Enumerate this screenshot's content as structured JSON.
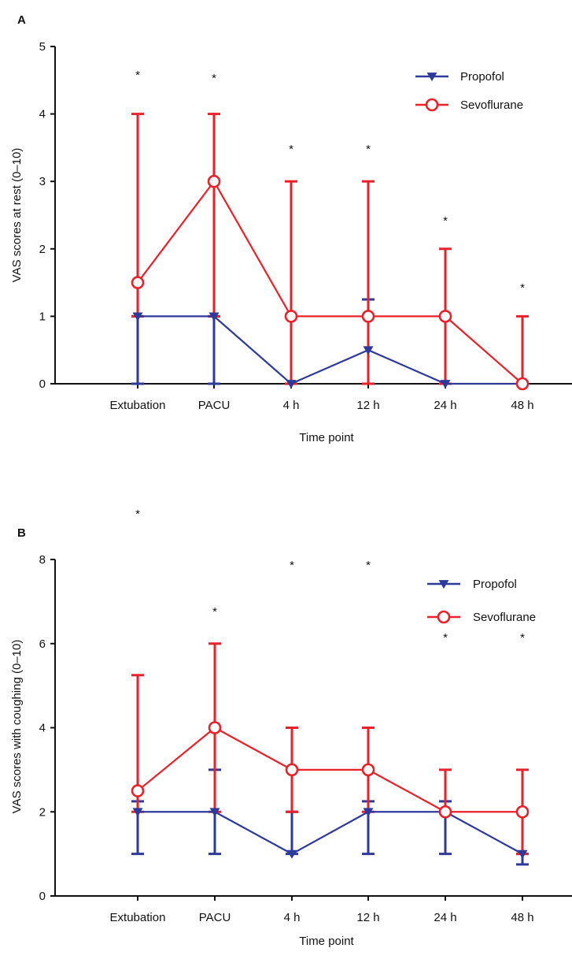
{
  "colors": {
    "propofol": "#2e3a9a",
    "sevoflurane": "#e8212a",
    "axis": "#111111"
  },
  "chart_data": [
    {
      "type": "line",
      "panel_label": "A",
      "xlabel": "Time point",
      "ylabel": "VAS scores at rest (0–10)",
      "categories": [
        "Extubation",
        "PACU",
        "4 h",
        "12 h",
        "24 h",
        "48 h"
      ],
      "ylim": [
        0,
        5
      ],
      "yticks": [
        0,
        1,
        2,
        3,
        4,
        5
      ],
      "ytick_labels": [
        "0",
        "1",
        "2",
        "3",
        "4",
        "5"
      ],
      "legend_position": "top-right",
      "significance": [
        "*",
        "*",
        "*",
        "*",
        "*",
        "*"
      ],
      "series": [
        {
          "name": "Propofol",
          "marker": "triangle-down",
          "color": "#2e3a9a",
          "values": [
            1,
            1,
            0,
            0.5,
            0,
            0
          ],
          "err_low": [
            0,
            0,
            0,
            0,
            0,
            0
          ],
          "err_high": [
            1,
            1,
            1,
            1.25,
            0,
            0
          ]
        },
        {
          "name": "Sevoflurane",
          "marker": "open-circle",
          "color": "#e8212a",
          "values": [
            1.5,
            3,
            1,
            1,
            1,
            0
          ],
          "err_low": [
            1,
            1,
            0,
            0,
            0,
            0
          ],
          "err_high": [
            4,
            4,
            3,
            3,
            2,
            1
          ]
        }
      ]
    },
    {
      "type": "line",
      "panel_label": "B",
      "xlabel": "Time point",
      "ylabel": "VAS scores with coughing (0–10)",
      "categories": [
        "Extubation",
        "PACU",
        "4 h",
        "12 h",
        "24 h",
        "48 h"
      ],
      "ylim": [
        0,
        8
      ],
      "yticks": [
        0,
        2,
        4,
        6,
        8
      ],
      "ytick_labels": [
        "0",
        "2",
        "4",
        "6",
        "8"
      ],
      "legend_position": "top-right",
      "significance": [
        "*",
        "*",
        "*",
        "*",
        "*",
        "*"
      ],
      "series": [
        {
          "name": "Propofol",
          "marker": "triangle-down",
          "color": "#2e3a9a",
          "values": [
            2,
            2,
            1,
            2,
            2,
            1
          ],
          "err_low": [
            1,
            1,
            1,
            1,
            1,
            0.75
          ],
          "err_high": [
            2.25,
            3,
            2,
            2.25,
            2.25,
            1
          ]
        },
        {
          "name": "Sevoflurane",
          "marker": "open-circle",
          "color": "#e8212a",
          "values": [
            2.5,
            4,
            3,
            3,
            2,
            2
          ],
          "err_low": [
            2,
            2,
            2,
            2,
            2,
            1
          ],
          "err_high": [
            5.25,
            6,
            4,
            4,
            3,
            3
          ]
        }
      ]
    }
  ]
}
